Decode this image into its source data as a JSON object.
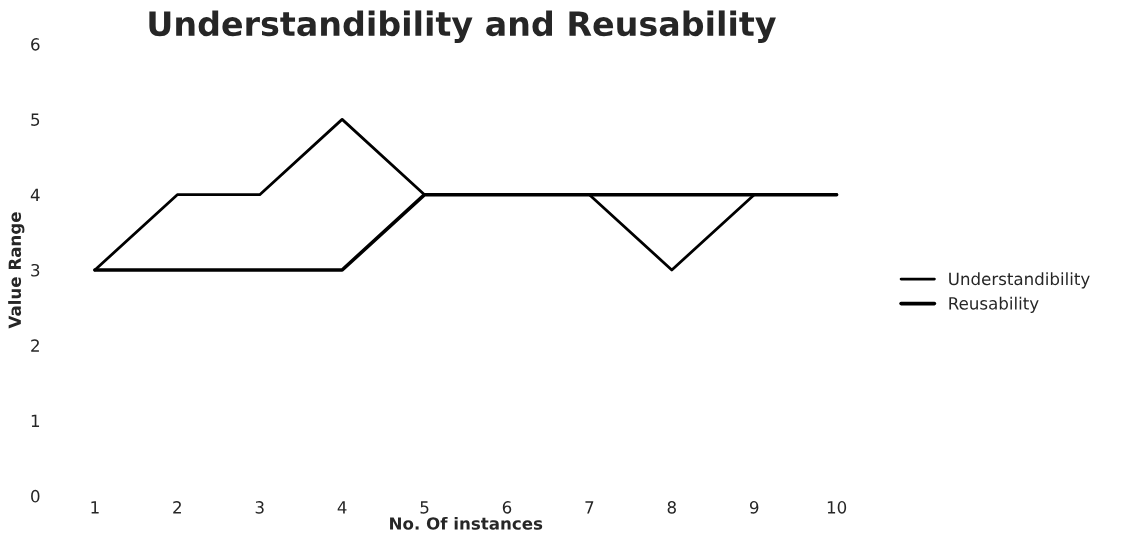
{
  "chart_data": {
    "type": "line",
    "title": "Understandibility and Reusability",
    "xlabel": "No. Of instances",
    "ylabel": "Value Range",
    "categories": [
      "1",
      "2",
      "3",
      "4",
      "5",
      "6",
      "7",
      "8",
      "9",
      "10"
    ],
    "series": [
      {
        "name": "Understandibility",
        "color": "#000000",
        "values": [
          3,
          4,
          4,
          5,
          4,
          4,
          4,
          3,
          4,
          4
        ]
      },
      {
        "name": "Reusability",
        "color": "#000000",
        "values": [
          3,
          3,
          3,
          3,
          4,
          4,
          4,
          4,
          4,
          4
        ]
      }
    ],
    "ylim": [
      0,
      6
    ],
    "yticks": [
      0,
      1,
      2,
      3,
      4,
      5,
      6
    ],
    "legend": "right",
    "grid": false,
    "marker": "none",
    "line_style": "solid"
  }
}
